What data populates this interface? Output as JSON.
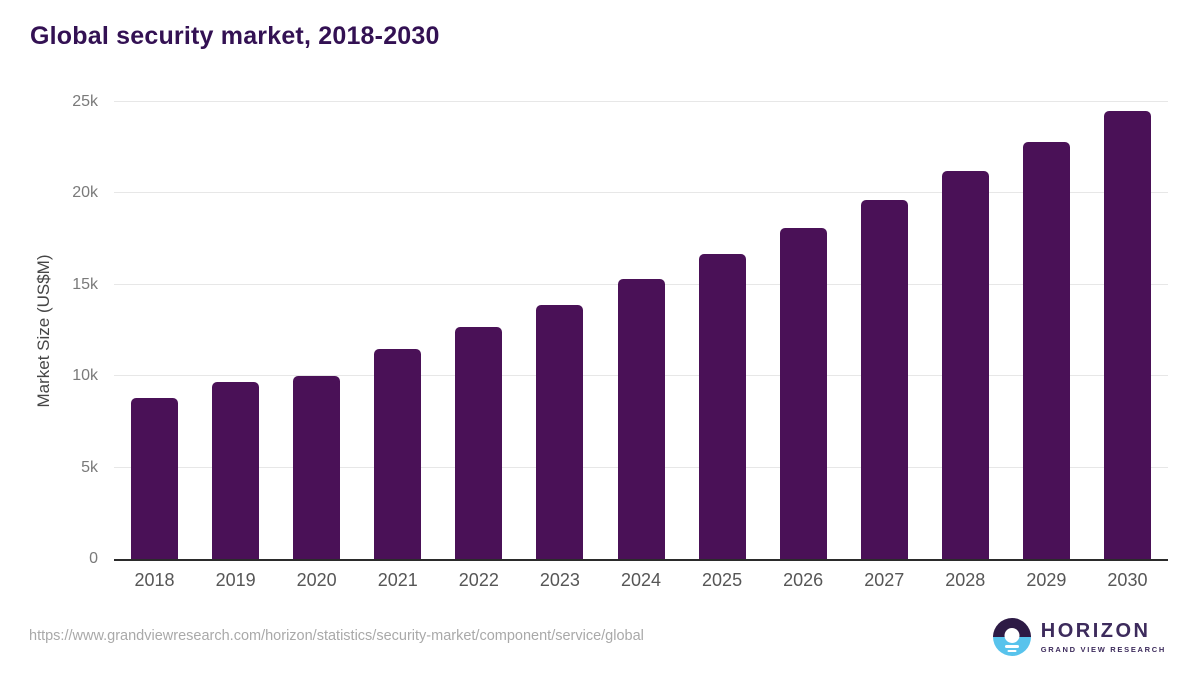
{
  "title": "Global security market, 2018-2030",
  "chart_data": {
    "type": "bar",
    "categories": [
      "2018",
      "2019",
      "2020",
      "2021",
      "2022",
      "2023",
      "2024",
      "2025",
      "2026",
      "2027",
      "2028",
      "2029",
      "2030"
    ],
    "values": [
      8800,
      9700,
      10000,
      11500,
      12700,
      13900,
      15300,
      16700,
      18100,
      19650,
      21200,
      22800,
      24500
    ],
    "title": "Global security market, 2018-2030",
    "xlabel": "",
    "ylabel": "Market Size (US$M)",
    "ylim": [
      0,
      25000
    ],
    "yticks": [
      0,
      5000,
      10000,
      15000,
      20000,
      25000
    ],
    "ytick_labels": [
      "0",
      "5k",
      "10k",
      "15k",
      "20k",
      "25k"
    ],
    "grid": true,
    "legend": "none",
    "bar_color": "#4a1157"
  },
  "footer": {
    "source_url": "https://www.grandviewresearch.com/horizon/statistics/security-market/component/service/global",
    "logo": {
      "name": "HORIZON",
      "subtitle": "GRAND VIEW RESEARCH",
      "icon": "sunrise-horizon-icon",
      "icon_top_color": "#2d1a45",
      "icon_bottom_color": "#58c3ec"
    }
  },
  "colors": {
    "title": "#331153",
    "axis_line": "#2b2b2b",
    "gridline": "#e7e7e7",
    "ytick_text": "#7a7a7a",
    "xtick_text": "#565656",
    "url_text": "#a9a9a9",
    "background": "#ffffff"
  }
}
